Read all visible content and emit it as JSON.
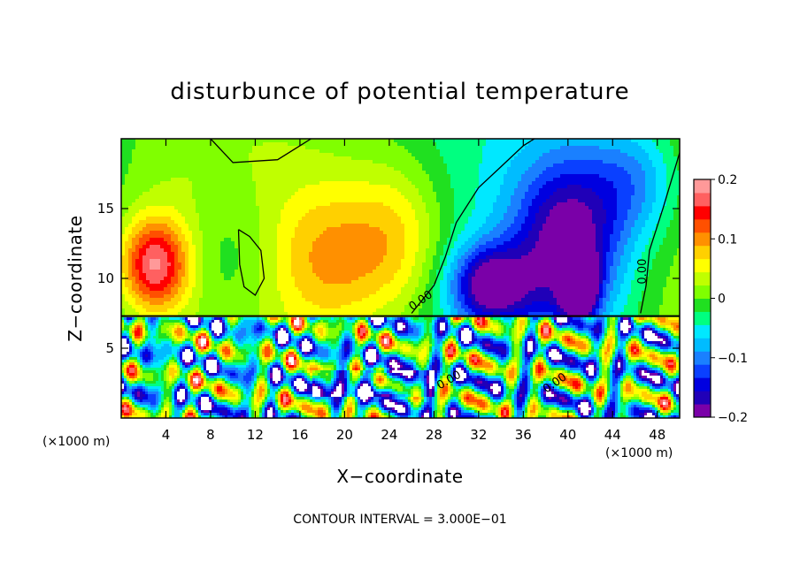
{
  "chart_data": {
    "type": "heatmap",
    "title": "disturbunce of potential temperature",
    "xlabel": "X−coordinate",
    "ylabel": "Z−coordinate",
    "x_unit": "(×1000 m)",
    "z_unit": "(×1000 m)",
    "xlim": [
      0,
      50
    ],
    "ylim": [
      0,
      20
    ],
    "x_ticks": [
      4,
      8,
      12,
      16,
      20,
      24,
      28,
      32,
      36,
      40,
      44,
      48
    ],
    "y_ticks": [
      5,
      10,
      15
    ],
    "colorbar": {
      "range": [
        -0.2,
        0.2
      ],
      "tick_values": [
        0.2,
        0.1,
        0,
        -0.1,
        -0.2
      ],
      "tick_labels": [
        "0.2",
        "0.1",
        "0",
        "−0.1",
        "−0.2"
      ],
      "colors": [
        "#7a00a8",
        "#2000b8",
        "#0000e0",
        "#0a40ff",
        "#1a80ff",
        "#00bcff",
        "#00e8ff",
        "#00ff80",
        "#20e020",
        "#80ff00",
        "#c0ff00",
        "#ffff00",
        "#ffd000",
        "#ff9000",
        "#ff5000",
        "#ff0000",
        "#ff6060",
        "#ff9999"
      ]
    },
    "contour_labels": [
      "0.00",
      "0.00",
      "0.00",
      "0.00"
    ],
    "footer": "CONTOUR INTERVAL = 3.000E−01",
    "upper_features": [
      {
        "x": 3.0,
        "z": 11.0,
        "sx": 2.2,
        "sz": 2.4,
        "value": 0.18
      },
      {
        "x": 10.0,
        "z": 11.5,
        "sx": 2.8,
        "sz": 3.5,
        "value": -0.03
      },
      {
        "x": 19.0,
        "z": 11.5,
        "sx": 4.0,
        "sz": 4.0,
        "value": 0.09
      },
      {
        "x": 25.0,
        "z": 13.0,
        "sx": 3.0,
        "sz": 4.0,
        "value": 0.07
      },
      {
        "x": 33.0,
        "z": 9.5,
        "sx": 2.5,
        "sz": 2.0,
        "value": -0.17
      },
      {
        "x": 40.0,
        "z": 12.5,
        "sx": 3.5,
        "sz": 4.5,
        "value": -0.18
      },
      {
        "x": 41.0,
        "z": 9.5,
        "sx": 1.0,
        "sz": 1.5,
        "value": -0.25
      },
      {
        "x": 46.0,
        "z": 17.0,
        "sx": 3.0,
        "sz": 3.0,
        "value": -0.08
      },
      {
        "x": 5.0,
        "z": 17.5,
        "sx": 4.0,
        "sz": 2.5,
        "value": 0.01
      }
    ]
  }
}
